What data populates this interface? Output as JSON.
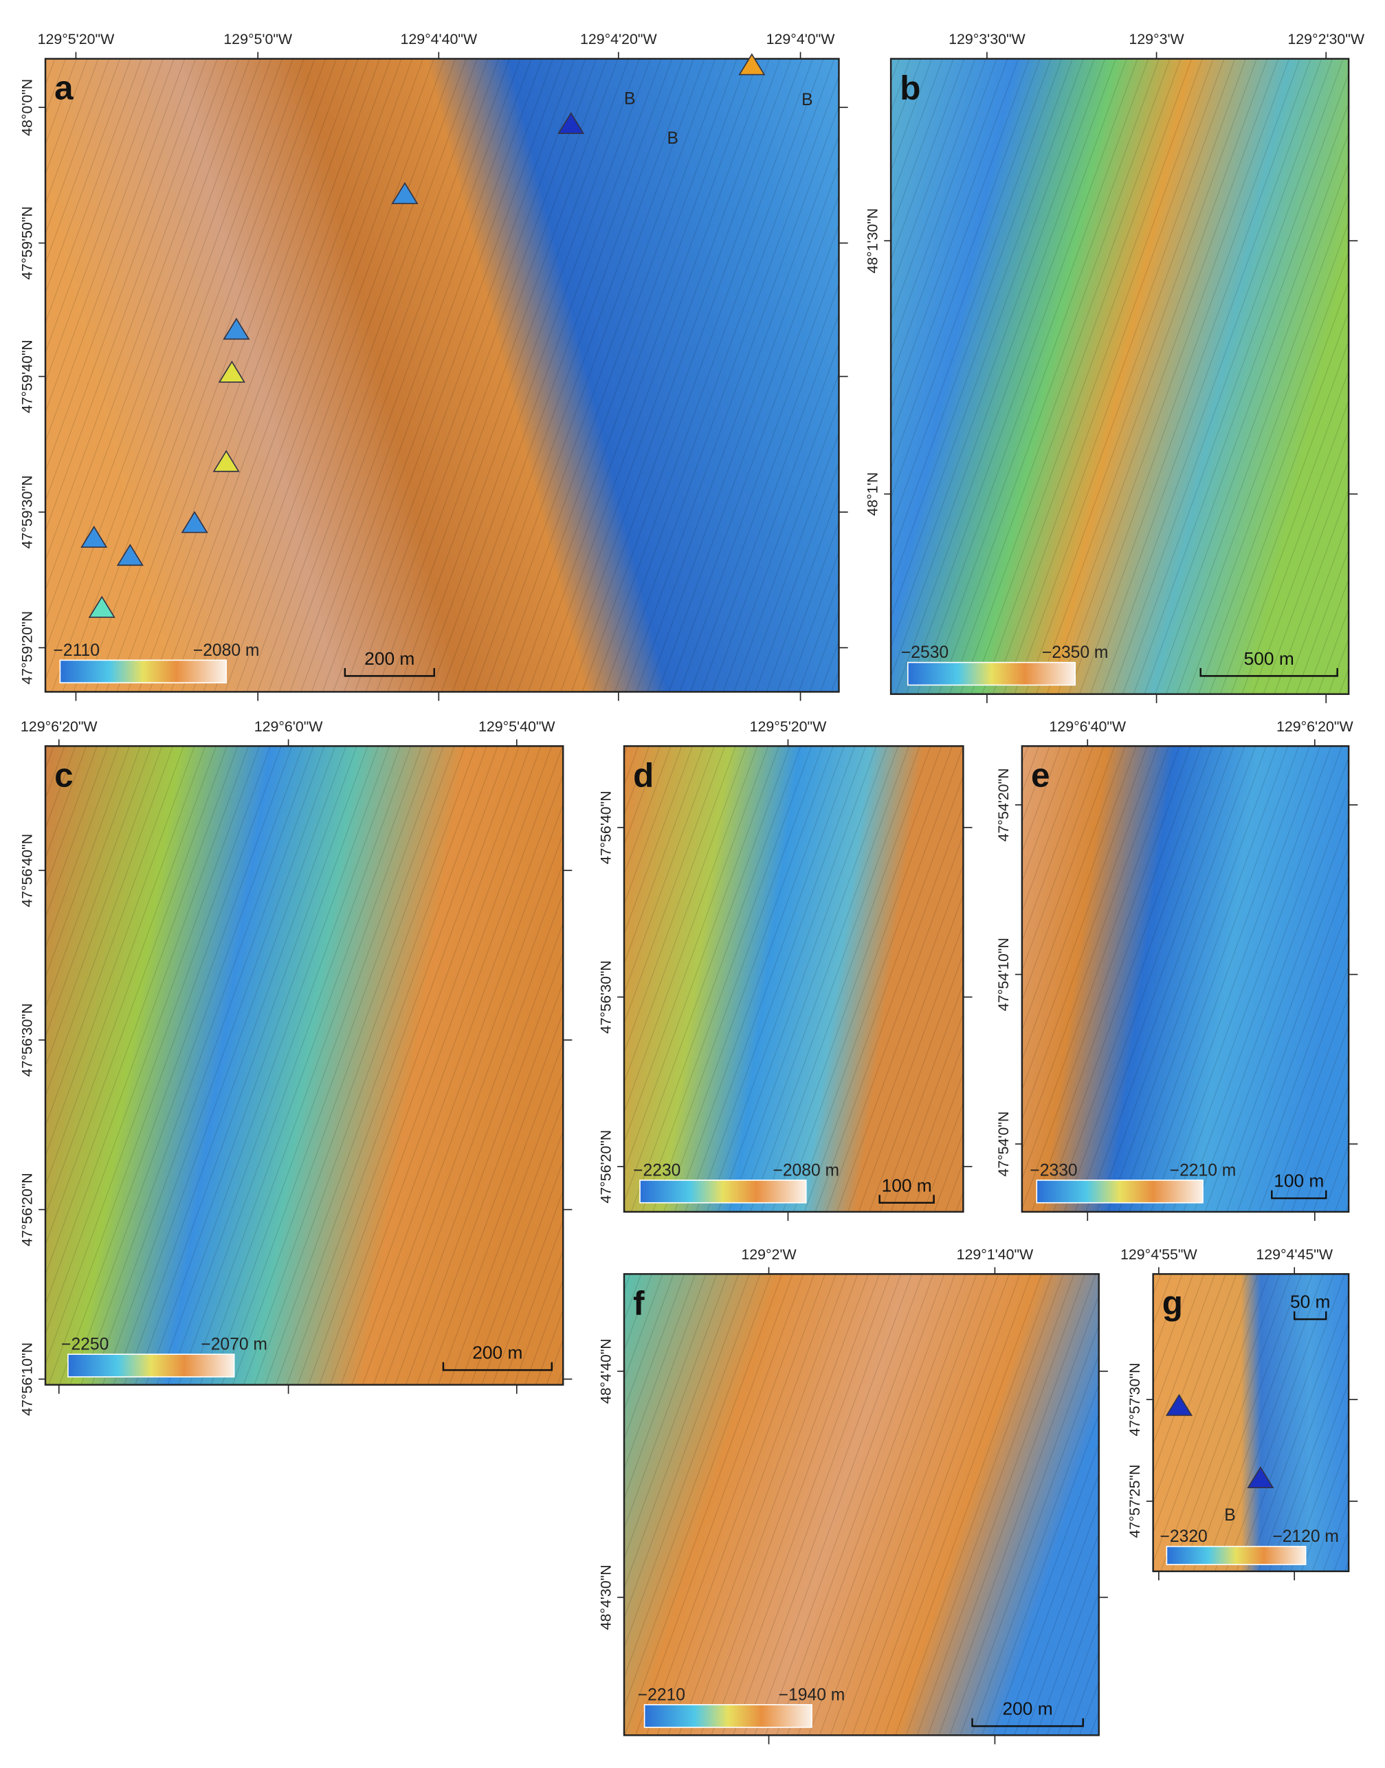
{
  "panels": [
    {
      "letter": "a",
      "lon_labels": [
        "129°5'20\"W",
        "129°5'0\"W",
        "129°4'40\"W",
        "129°4'20\"W",
        "129°4'0\"W"
      ],
      "lat_labels": [
        "48°0'0\"N",
        "47°59'50\"N",
        "47°59'40\"N",
        "47°59'30\"N",
        "47°59'20\"N"
      ],
      "colorbar": {
        "min": "−2110",
        "max": "−2080 m"
      },
      "scale": "200 m",
      "markers": [
        "B",
        "B",
        "B"
      ]
    },
    {
      "letter": "b",
      "lon_labels": [
        "129°3'30\"W",
        "129°3'W",
        "129°2'30\"W"
      ],
      "lat_labels": [
        "48°1'30\"N",
        "48°1'N"
      ],
      "colorbar": {
        "min": "−2530",
        "max": "−2350 m"
      },
      "scale": "500 m",
      "markers": []
    },
    {
      "letter": "c",
      "lon_labels": [
        "129°6'20\"W",
        "129°6'0\"W",
        "129°5'40\"W"
      ],
      "lat_labels": [
        "47°56'40\"N",
        "47°56'30\"N",
        "47°56'20\"N",
        "47°56'10\"N"
      ],
      "colorbar": {
        "min": "−2250",
        "max": "−2070 m"
      },
      "scale": "200 m",
      "markers": []
    },
    {
      "letter": "d",
      "lon_labels": [
        "129°5'20\"W"
      ],
      "lat_labels": [
        "47°56'40\"N",
        "47°56'30\"N",
        "47°56'20\"N"
      ],
      "colorbar": {
        "min": "−2230",
        "max": "−2080 m"
      },
      "scale": "100 m",
      "markers": []
    },
    {
      "letter": "e",
      "lon_labels": [
        "129°6'40\"W",
        "129°6'20\"W"
      ],
      "lat_labels": [
        "47°54'20\"N",
        "47°54'10\"N",
        "47°54'0\"N"
      ],
      "colorbar": {
        "min": "−2330",
        "max": "−2210 m"
      },
      "scale": "100 m",
      "markers": []
    },
    {
      "letter": "f",
      "lon_labels": [
        "129°2'W",
        "129°1'40\"W"
      ],
      "lat_labels": [
        "48°4'40\"N",
        "48°4'30\"N"
      ],
      "colorbar": {
        "min": "−2210",
        "max": "−1940 m"
      },
      "scale": "200 m",
      "markers": []
    },
    {
      "letter": "g",
      "lon_labels": [
        "129°4'55\"W",
        "129°4'45\"W"
      ],
      "lat_labels": [
        "47°57'30\"N",
        "47°57'25\"N"
      ],
      "colorbar": {
        "min": "−2320",
        "max": "−2120 m"
      },
      "scale": "50 m",
      "markers": [
        "B"
      ]
    }
  ]
}
